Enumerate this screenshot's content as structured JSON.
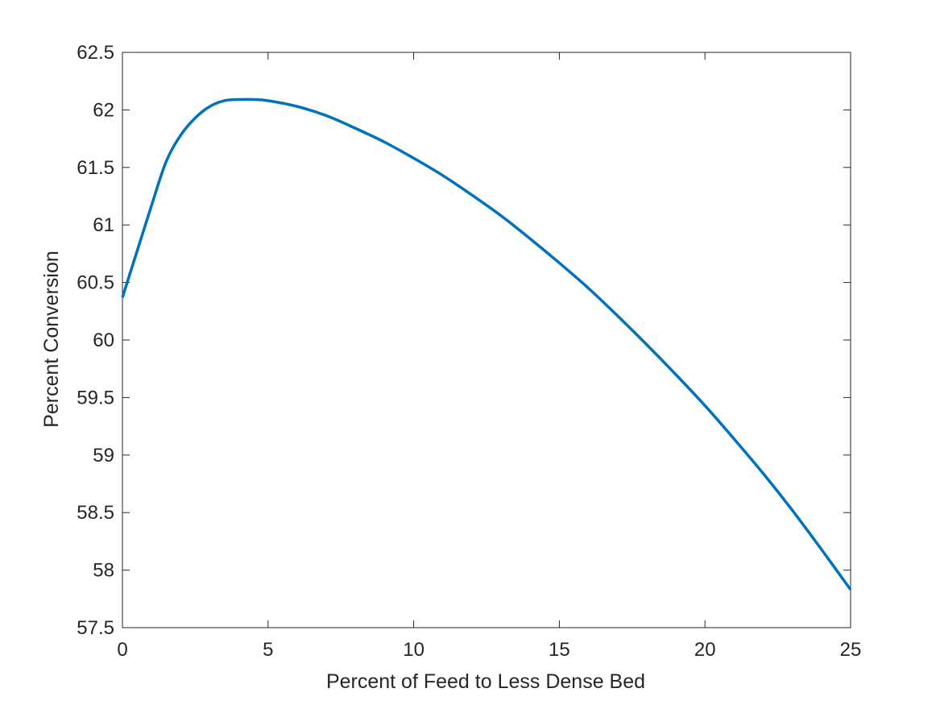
{
  "chart_data": {
    "type": "line",
    "title": "",
    "xlabel": "Percent of Feed to Less Dense Bed",
    "ylabel": "Percent Conversion",
    "xlim": [
      0,
      25
    ],
    "ylim": [
      57.5,
      62.5
    ],
    "grid": false,
    "legend": "none",
    "x_ticks": [
      "0",
      "5",
      "10",
      "15",
      "20",
      "25"
    ],
    "y_ticks": [
      "57.5",
      "58",
      "58.5",
      "59",
      "59.5",
      "60",
      "60.5",
      "61",
      "61.5",
      "62",
      "62.5"
    ],
    "series": [
      {
        "color": "#0072BD",
        "x": [
          0,
          0.5,
          1.0,
          1.5,
          2.0,
          2.5,
          3.0,
          3.5,
          4.0,
          4.5,
          5.0,
          6.0,
          7.0,
          8.0,
          9.0,
          10.0,
          11.0,
          12.0,
          13.0,
          14.0,
          15.0,
          16.0,
          17.0,
          18.0,
          19.0,
          20.0,
          21.0,
          22.0,
          23.0,
          24.0,
          25.0
        ],
        "y": [
          60.37,
          60.77,
          61.17,
          61.55,
          61.78,
          61.93,
          62.03,
          62.08,
          62.09,
          62.09,
          62.08,
          62.03,
          61.95,
          61.84,
          61.72,
          61.58,
          61.43,
          61.26,
          61.08,
          60.88,
          60.67,
          60.45,
          60.21,
          59.96,
          59.7,
          59.43,
          59.14,
          58.84,
          58.52,
          58.18,
          57.83
        ]
      }
    ]
  }
}
